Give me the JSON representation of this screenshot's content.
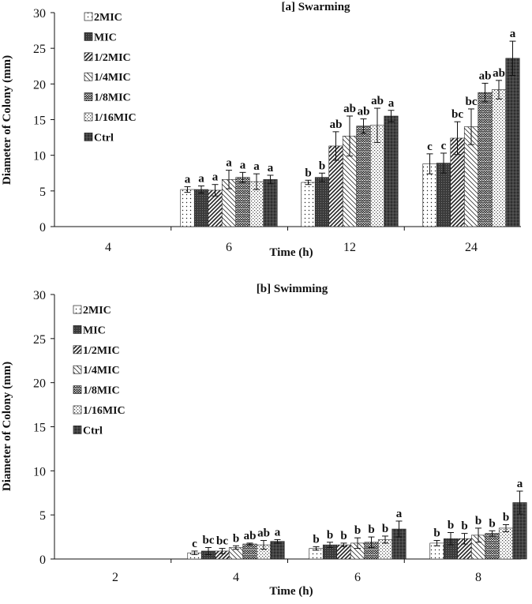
{
  "chart_data": [
    {
      "type": "bar",
      "title": "[a] Swarming",
      "xlabel": "Time (h)",
      "ylabel": "Diameter of Colony (mm)",
      "ylim": [
        0,
        30
      ],
      "yticks": [
        "0",
        "5",
        "10",
        "15",
        "20",
        "25",
        "30"
      ],
      "categories": [
        "4",
        "6",
        "12",
        "24"
      ],
      "legend": [
        "2MIC",
        "MIC",
        "1/2MIC",
        "1/4MIC",
        "1/8MIC",
        "1/16MIC",
        "Ctrl"
      ],
      "legend_position": "top-left",
      "series": [
        {
          "name": "2MIC",
          "values": [
            null,
            5.2,
            6.2,
            8.8
          ],
          "errors": [
            null,
            0.4,
            0.3,
            1.4
          ],
          "letters": [
            null,
            "a",
            "b",
            "c"
          ]
        },
        {
          "name": "MIC",
          "values": [
            null,
            5.2,
            6.9,
            8.9
          ],
          "errors": [
            null,
            0.5,
            0.6,
            1.4
          ],
          "letters": [
            null,
            "a",
            "b",
            "c"
          ]
        },
        {
          "name": "1/2MIC",
          "values": [
            null,
            5.1,
            11.3,
            12.4
          ],
          "errors": [
            null,
            0.8,
            2.0,
            2.3
          ],
          "letters": [
            null,
            "a",
            "ab",
            "bc"
          ]
        },
        {
          "name": "1/4MIC",
          "values": [
            null,
            6.6,
            12.7,
            14.0
          ],
          "errors": [
            null,
            1.3,
            2.8,
            2.5
          ],
          "letters": [
            null,
            "a",
            "ab",
            "bc"
          ]
        },
        {
          "name": "1/8MIC",
          "values": [
            null,
            6.9,
            14.1,
            18.8
          ],
          "errors": [
            null,
            0.7,
            1.0,
            1.3
          ],
          "letters": [
            null,
            "a",
            "ab",
            "ab"
          ]
        },
        {
          "name": "1/16MIC",
          "values": [
            null,
            6.3,
            14.2,
            19.2
          ],
          "errors": [
            null,
            1.1,
            2.4,
            1.3
          ],
          "letters": [
            null,
            "a",
            "ab",
            "ab"
          ]
        },
        {
          "name": "Ctrl",
          "values": [
            null,
            6.6,
            15.5,
            23.6
          ],
          "errors": [
            null,
            0.6,
            0.8,
            2.4
          ],
          "letters": [
            null,
            "a",
            "a",
            "a"
          ]
        }
      ]
    },
    {
      "type": "bar",
      "title": "[b] Swimming",
      "xlabel": "Time (h)",
      "ylabel": "Diameter of Colony (mm)",
      "ylim": [
        0,
        30
      ],
      "yticks": [
        "0",
        "5",
        "10",
        "15",
        "20",
        "25",
        "30"
      ],
      "categories": [
        "2",
        "4",
        "6",
        "8"
      ],
      "legend": [
        "2MIC",
        "MIC",
        "1/2MIC",
        "1/4MIC",
        "1/8MIC",
        "1/16MIC",
        "Ctrl"
      ],
      "legend_position": "top-left",
      "series": [
        {
          "name": "2MIC",
          "values": [
            null,
            0.7,
            1.2,
            1.8
          ],
          "errors": [
            null,
            0.2,
            0.2,
            0.3
          ],
          "letters": [
            null,
            "c",
            "b",
            "b"
          ]
        },
        {
          "name": "MIC",
          "values": [
            null,
            0.9,
            1.6,
            2.3
          ],
          "errors": [
            null,
            0.4,
            0.3,
            0.7
          ],
          "letters": [
            null,
            "bc",
            "b",
            "b"
          ]
        },
        {
          "name": "1/2MIC",
          "values": [
            null,
            0.9,
            1.6,
            2.3
          ],
          "errors": [
            null,
            0.3,
            0.2,
            0.6
          ],
          "letters": [
            null,
            "bc",
            "b",
            "b"
          ]
        },
        {
          "name": "1/4MIC",
          "values": [
            null,
            1.3,
            1.8,
            2.7
          ],
          "errors": [
            null,
            0.2,
            0.6,
            0.8
          ],
          "letters": [
            null,
            "b",
            "b",
            "b"
          ]
        },
        {
          "name": "1/8MIC",
          "values": [
            null,
            1.7,
            1.9,
            2.9
          ],
          "errors": [
            null,
            0.1,
            0.6,
            0.3
          ],
          "letters": [
            null,
            "ab",
            "b",
            "b"
          ]
        },
        {
          "name": "1/16MIC",
          "values": [
            null,
            1.6,
            2.2,
            3.5
          ],
          "errors": [
            null,
            0.5,
            0.4,
            0.4
          ],
          "letters": [
            null,
            "ab",
            "b",
            "b"
          ]
        },
        {
          "name": "Ctrl",
          "values": [
            null,
            2.0,
            3.4,
            6.4
          ],
          "errors": [
            null,
            0.2,
            0.9,
            1.3
          ],
          "letters": [
            null,
            "a",
            "a",
            "a"
          ]
        }
      ]
    }
  ]
}
